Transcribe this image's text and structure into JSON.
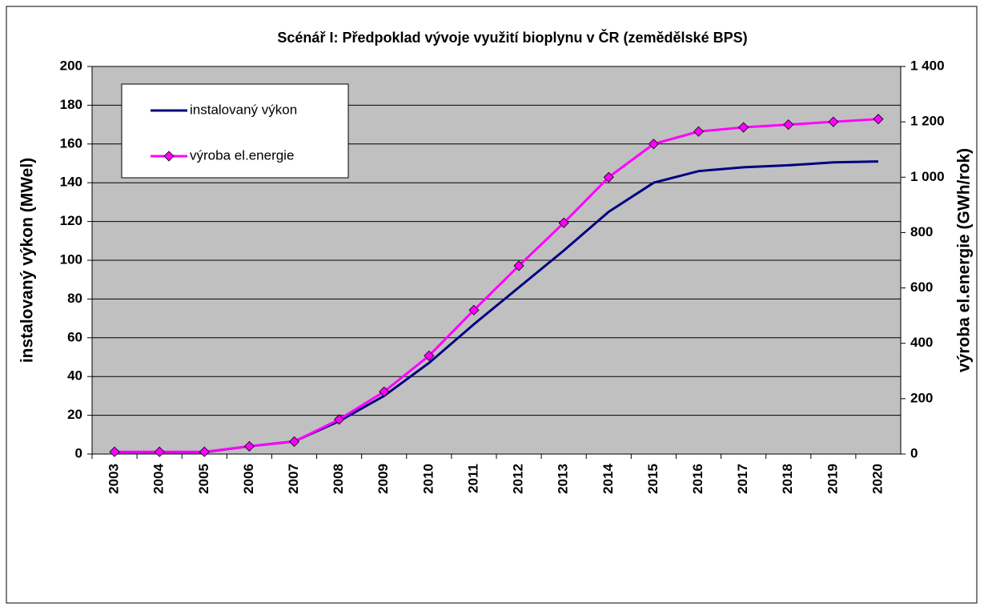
{
  "chart_data": {
    "type": "line",
    "title": "Scénář I: Předpoklad vývoje využití bioplynu v ČR (zemědělské BPS)",
    "ylabel": "instalovaný výkon (MWel)",
    "y2label": "výroba el.energie (GWh/rok)",
    "categories": [
      "2003",
      "2004",
      "2005",
      "2006",
      "2007",
      "2008",
      "2009",
      "2010",
      "2011",
      "2012",
      "2013",
      "2014",
      "2015",
      "2016",
      "2017",
      "2018",
      "2019",
      "2020"
    ],
    "series": [
      {
        "name": "instalovaný výkon",
        "color": "#000080",
        "marker": false,
        "values": [
          1,
          1,
          1,
          4,
          6.5,
          17,
          30,
          47,
          67,
          86,
          105,
          125,
          140,
          146,
          148,
          149,
          150.5,
          151
        ]
      },
      {
        "name": "výroba el.energie",
        "color": "#ff00ff",
        "marker": true,
        "axis": "y2",
        "values": [
          8,
          8,
          8,
          28,
          45,
          125,
          225,
          355,
          520,
          680,
          835,
          1000,
          1120,
          1165,
          1180,
          1190,
          1200,
          1210
        ]
      }
    ],
    "ylim": [
      0,
      200
    ],
    "yticks": [
      0,
      20,
      40,
      60,
      80,
      100,
      120,
      140,
      160,
      180,
      200
    ],
    "y2lim": [
      0,
      1400
    ],
    "y2ticks": [
      0,
      200,
      400,
      600,
      800,
      {
        "value": 1000,
        "label": "1 000"
      },
      {
        "value": 1200,
        "label": "1 200"
      },
      {
        "value": 1400,
        "label": "1 400"
      }
    ],
    "grid": true,
    "legend": "upper left"
  }
}
